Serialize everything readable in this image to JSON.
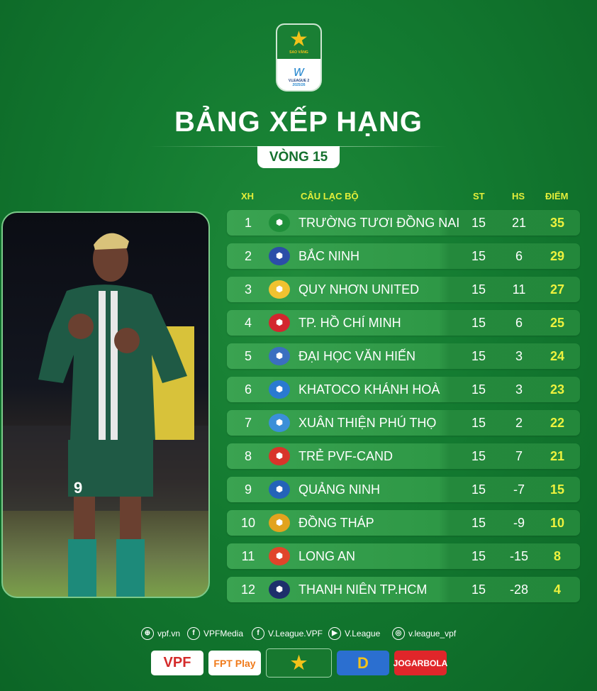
{
  "header": {
    "logo_text": "SAO VÀNG",
    "logo_sub": "V.LEAGUE 2",
    "logo_season": "2025/26",
    "title": "BẢNG XẾP HẠNG",
    "round": "VÒNG 15"
  },
  "columns": {
    "pos": "XH",
    "club": "CÂU LẠC BỘ",
    "played": "ST",
    "gd": "HS",
    "points": "ĐIỂM"
  },
  "rows": [
    {
      "pos": "1",
      "club": "TRƯỜNG TƯƠI ĐỒNG NAI",
      "st": "15",
      "hs": "21",
      "pts": "35",
      "crest": "#1f8f3a"
    },
    {
      "pos": "2",
      "club": "BẮC NINH",
      "st": "15",
      "hs": "6",
      "pts": "29",
      "crest": "#2b4ea8"
    },
    {
      "pos": "3",
      "club": "QUY NHƠN UNITED",
      "st": "15",
      "hs": "11",
      "pts": "27",
      "crest": "#f0c230"
    },
    {
      "pos": "4",
      "club": "TP. HỒ CHÍ MINH",
      "st": "15",
      "hs": "6",
      "pts": "25",
      "crest": "#d3262e"
    },
    {
      "pos": "5",
      "club": "ĐẠI HỌC VĂN HIẾN",
      "st": "15",
      "hs": "3",
      "pts": "24",
      "crest": "#3a6fc0"
    },
    {
      "pos": "6",
      "club": "KHATOCO KHÁNH HOÀ",
      "st": "15",
      "hs": "3",
      "pts": "23",
      "crest": "#2a7ad0"
    },
    {
      "pos": "7",
      "club": "XUÂN THIỆN PHÚ THỌ",
      "st": "15",
      "hs": "2",
      "pts": "22",
      "crest": "#3b8fd8"
    },
    {
      "pos": "8",
      "club": "TRẺ PVF-CAND",
      "st": "15",
      "hs": "7",
      "pts": "21",
      "crest": "#d8342a"
    },
    {
      "pos": "9",
      "club": "QUẢNG NINH",
      "st": "15",
      "hs": "-7",
      "pts": "15",
      "crest": "#2463b8"
    },
    {
      "pos": "10",
      "club": "ĐỒNG THÁP",
      "st": "15",
      "hs": "-9",
      "pts": "10",
      "crest": "#e2a31e"
    },
    {
      "pos": "11",
      "club": "LONG AN",
      "st": "15",
      "hs": "-15",
      "pts": "8",
      "crest": "#e0452a"
    },
    {
      "pos": "12",
      "club": "THANH NIÊN TP.HCM",
      "st": "15",
      "hs": "-28",
      "pts": "4",
      "crest": "#1d2f6b"
    }
  ],
  "social": [
    {
      "icon": "globe-icon",
      "glyph": "⊕",
      "label": "vpf.vn"
    },
    {
      "icon": "facebook-icon",
      "glyph": "f",
      "label": "VPFMedia"
    },
    {
      "icon": "facebook-icon",
      "glyph": "f",
      "label": "V.League.VPF"
    },
    {
      "icon": "youtube-icon",
      "glyph": "▶",
      "label": "V.League"
    },
    {
      "icon": "instagram-icon",
      "glyph": "◎",
      "label": "v.league_vpf"
    }
  ],
  "sponsors": [
    {
      "label": "VPF",
      "bg": "#ffffff",
      "color": "#d42a2a"
    },
    {
      "label": "FPT Play",
      "bg": "#ffffff",
      "color": "#f07a1a"
    },
    {
      "label": "★",
      "bg": "#17782f",
      "color": "#f2c21a"
    },
    {
      "label": "D",
      "bg": "#2b6fd0",
      "color": "#f2c21a"
    },
    {
      "label": "JOGARBOLA",
      "bg": "#e0262a",
      "color": "#ffffff"
    }
  ],
  "player": {
    "shirt_number": "9"
  }
}
